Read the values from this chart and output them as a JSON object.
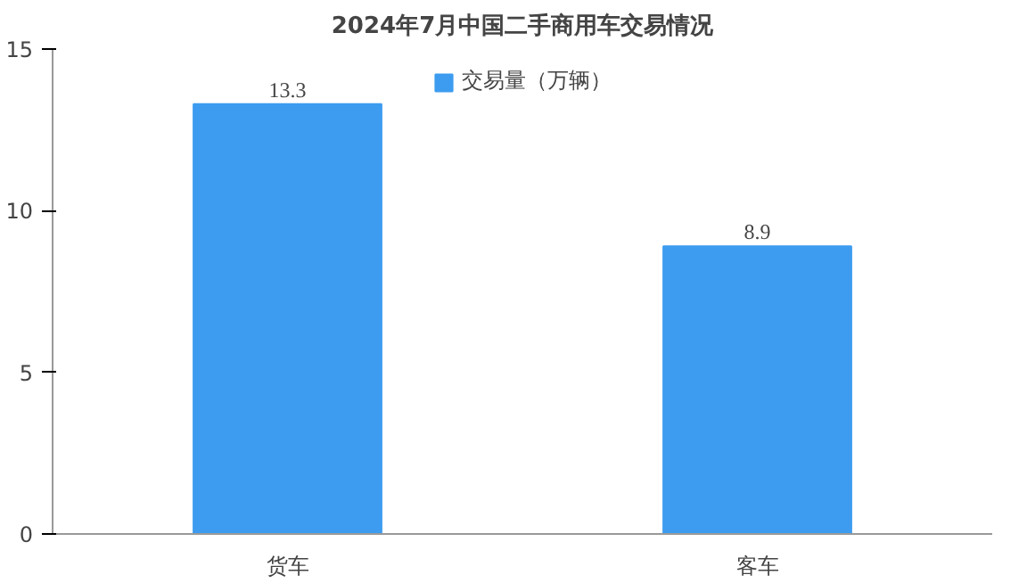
{
  "chart_data": {
    "type": "bar",
    "title": "2024年7月中国二手商用车交易情况",
    "categories": [
      "货车",
      "客车"
    ],
    "series": [
      {
        "name": "交易量（万辆）",
        "color": "#3d9cf0",
        "values": [
          13.3,
          8.9
        ]
      }
    ],
    "ylim": [
      0,
      15
    ],
    "yticks": [
      0,
      5,
      10,
      15
    ],
    "grid": false,
    "legend": "top",
    "data_labels": true
  }
}
